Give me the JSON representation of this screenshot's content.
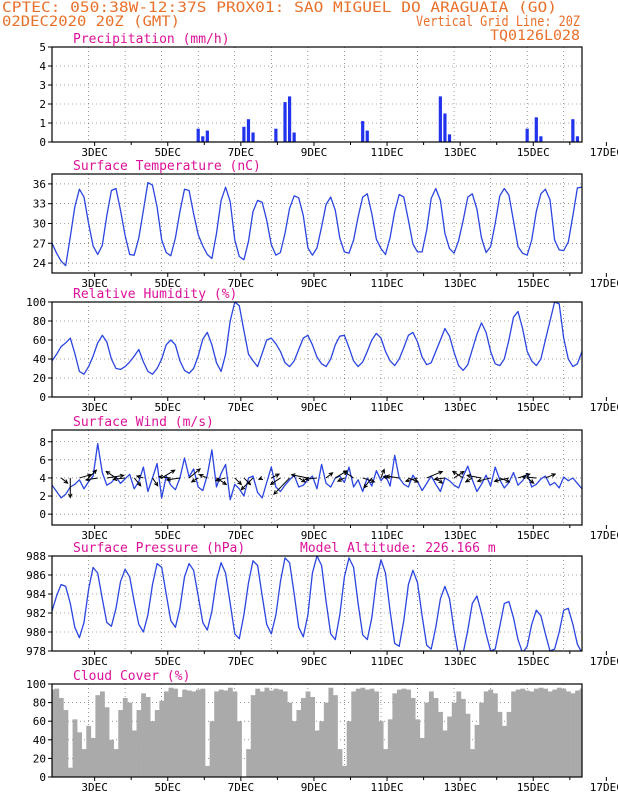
{
  "header": {
    "line1": "CPTEC:  050:38W-12:37S  PROX01: SAO MIGUEL DO ARAGUAIA (GO)",
    "line2_left": "02DEC2020 20Z (GMT)",
    "line2_right": "Vertical Grid Line: 20Z",
    "line3_right": "TQ0126L028"
  },
  "colors": {
    "header": "#e8702a",
    "panel_title": "#dd1199",
    "line": "#2b45e0",
    "bar": "#2233ee",
    "cloud": "#aaaaaa",
    "arrow": "#000000",
    "grid": "#555555"
  },
  "time_axis": {
    "start": "2020-12-02T20Z",
    "end": "2020-12-17T08Z",
    "tick_labels": [
      "3DEC",
      "5DEC",
      "7DEC",
      "9DEC",
      "11DEC",
      "13DEC",
      "15DEC",
      "17DEC"
    ],
    "vertical_grid": "20Z daily",
    "step_hours": 3
  },
  "panels": {
    "precip": {
      "title": "Precipitation (mm/h)",
      "ylim": [
        0,
        5
      ],
      "yticks": [
        "0",
        "1",
        "2",
        "3",
        "4",
        "5"
      ]
    },
    "temp": {
      "title": "Surface Temperature (nC)",
      "ylim": [
        22.5,
        37.5
      ],
      "yticks": [
        "24",
        "27",
        "30",
        "33",
        "36"
      ]
    },
    "rh": {
      "title": "Relative Humidity (%)",
      "ylim": [
        0,
        100
      ],
      "yticks": [
        "0",
        "20",
        "40",
        "60",
        "80",
        "100"
      ]
    },
    "wind": {
      "title": "Surface Wind (m/s)",
      "ylim": [
        -1.2,
        9.3
      ],
      "yticks": [
        "0",
        "2",
        "4",
        "6",
        "8"
      ]
    },
    "pres": {
      "title": "Surface Pressure (hPa)",
      "altitude": "Model Altitude: 226.166 m",
      "ylim": [
        978,
        988
      ],
      "yticks": [
        "978",
        "980",
        "982",
        "984",
        "986",
        "988"
      ]
    },
    "cloud": {
      "title": "Cloud Cover (%)",
      "ylim": [
        0,
        100
      ],
      "yticks": [
        "0",
        "20",
        "40",
        "60",
        "80",
        "100"
      ]
    }
  },
  "chart_data": [
    {
      "type": "bar",
      "title": "Precipitation (mm/h)",
      "x_start": "2020-12-02T20Z",
      "x_step_hours": 3,
      "ylim": [
        0,
        5
      ],
      "values": [
        0,
        0,
        0,
        0,
        0,
        0,
        0,
        0,
        0,
        0,
        0,
        0,
        0,
        0,
        0,
        0,
        0,
        0,
        0,
        0,
        0,
        0,
        0,
        0,
        0,
        0,
        0.02,
        0.03,
        0,
        0,
        0,
        0,
        0.7,
        0.3,
        0.6,
        0,
        0,
        0,
        0,
        0,
        0,
        0,
        0.8,
        1.2,
        0.5,
        0,
        0,
        0,
        0,
        0.7,
        0,
        2.1,
        2.4,
        0.5,
        0,
        0,
        0,
        0,
        0,
        0,
        0,
        0,
        0,
        0,
        0,
        0,
        0,
        0,
        1.1,
        0.6,
        0,
        0,
        0,
        0,
        0,
        0,
        0,
        0,
        0,
        0,
        0,
        0,
        0,
        0,
        0,
        2.4,
        1.5,
        0.4,
        0,
        0,
        0,
        0,
        0,
        0,
        0,
        0,
        0,
        0,
        0,
        0,
        0,
        0,
        0,
        0,
        0.7,
        0,
        1.3,
        0.3,
        0,
        0,
        0,
        0,
        0,
        0,
        1.2,
        0.3,
        0,
        0,
        0,
        0,
        0,
        0,
        0,
        0,
        1.0,
        0.7,
        0,
        0,
        0,
        0,
        1.5,
        1.0,
        0.4,
        0.2,
        0,
        0,
        0,
        0,
        0,
        0,
        0,
        0,
        0,
        1.3,
        0.4,
        0,
        0
      ]
    },
    {
      "type": "line",
      "title": "Surface Temperature (nC)",
      "x_start": "2020-12-02T20Z",
      "x_step_hours": 3,
      "ylim": [
        22.5,
        37.5
      ],
      "values": [
        27,
        25.5,
        24.3,
        23.6,
        28,
        32.5,
        35.2,
        34,
        30,
        26.6,
        25.3,
        26.7,
        31.2,
        35.0,
        35.3,
        32,
        28.2,
        25.3,
        25.2,
        27.8,
        32,
        36.2,
        35.8,
        32.5,
        27.5,
        25.6,
        25.1,
        27.8,
        31.8,
        35.2,
        35.0,
        31.5,
        28.3,
        26.6,
        25.3,
        24.7,
        28.5,
        33.5,
        35.5,
        33.3,
        27.5,
        25,
        24.5,
        27.3,
        31.8,
        33.5,
        33.2,
        30.5,
        26.8,
        25.2,
        25.6,
        28.5,
        32.3,
        34.2,
        33.9,
        31.2,
        26.3,
        25.2,
        26.3,
        29.5,
        32.9,
        34.0,
        32.0,
        27.8,
        25.7,
        25.5,
        27.5,
        31.0,
        34.0,
        34.5,
        31.5,
        27.6,
        26.2,
        25.3,
        27.9,
        31.8,
        34.4,
        34.0,
        30.5,
        26.9,
        25.7,
        25.7,
        29.0,
        33.8,
        35.3,
        33.5,
        28.5,
        26.2,
        25.5,
        27.4,
        30.5,
        34.0,
        34.5,
        32.2,
        27.8,
        25.6,
        26.5,
        30.0,
        34.2,
        35.3,
        34.3,
        30.4,
        26.5,
        25.5,
        25.2,
        27.5,
        31.8,
        34.5,
        35.2,
        33.6,
        27.5,
        26,
        25.9,
        27.2,
        31.2,
        35.4,
        35.5,
        31.6,
        27.3,
        25.3,
        24.9,
        26.8,
        30.5,
        34.8,
        35.0,
        30.2
      ]
    },
    {
      "type": "line",
      "title": "Relative Humidity (%)",
      "x_start": "2020-12-02T20Z",
      "x_step_hours": 3,
      "ylim": [
        0,
        100
      ],
      "values": [
        38,
        45,
        53,
        57,
        62,
        46,
        27,
        24,
        32,
        43,
        57,
        65,
        58,
        40,
        30,
        29,
        32,
        37,
        43,
        50,
        37,
        27,
        24,
        30,
        40,
        55,
        60,
        55,
        38,
        28,
        25,
        30,
        43,
        61,
        68,
        55,
        36,
        27,
        45,
        80,
        100,
        96,
        70,
        45,
        38,
        32,
        46,
        60,
        62,
        56,
        48,
        36,
        32,
        38,
        50,
        62,
        65,
        55,
        42,
        35,
        32,
        40,
        55,
        64,
        65,
        52,
        38,
        32,
        37,
        48,
        60,
        67,
        62,
        48,
        38,
        33,
        40,
        52,
        65,
        68,
        58,
        42,
        34,
        36,
        48,
        60,
        72,
        64,
        47,
        33,
        28,
        34,
        50,
        66,
        78,
        68,
        48,
        35,
        33,
        40,
        60,
        84,
        90,
        72,
        48,
        38,
        33,
        40,
        60,
        80,
        100,
        98,
        62,
        40,
        32,
        35,
        48,
        62,
        66,
        55,
        40,
        32,
        33,
        45,
        57,
        68,
        58,
        36,
        29,
        38
      ]
    },
    {
      "type": "line",
      "title": "Surface Wind (m/s)",
      "x_start": "2020-12-02T20Z",
      "x_step_hours": 3,
      "ylim": [
        -1.2,
        9.3
      ],
      "values": [
        3.2,
        2.5,
        1.8,
        2.2,
        3.0,
        3.3,
        3.8,
        2.8,
        3.6,
        4.2,
        7.8,
        4.6,
        3.2,
        3.5,
        4.1,
        3.4,
        3.9,
        4.4,
        2.8,
        3.6,
        5.2,
        2.5,
        4.0,
        5.6,
        1.8,
        4.2,
        3.2,
        2.7,
        4.0,
        6.2,
        4.1,
        5.0,
        3.0,
        2.6,
        4.3,
        7.1,
        3.0,
        4.5,
        5.5,
        1.6,
        3.3,
        2.8,
        2.0,
        4.0,
        4.2,
        2.4,
        1.8,
        3.5,
        5.2,
        3.0,
        2.5,
        3.2,
        3.8,
        4.3,
        3.0,
        3.2,
        3.8,
        4.2,
        2.8,
        5.5,
        3.4,
        3.0,
        4.0,
        4.2,
        3.5,
        5.2,
        3.0,
        3.8,
        2.5,
        4.0,
        3.1,
        4.8,
        3.7,
        4.3,
        3.1,
        6.5,
        4.0,
        3.3,
        3.0,
        4.3,
        3.6,
        2.6,
        3.4,
        4.2,
        3.3,
        2.5,
        4.0,
        3.7,
        3.2,
        2.9,
        4.2,
        5.3,
        3.8,
        2.5,
        3.3,
        4.3,
        3.1,
        5.2,
        3.8,
        2.9,
        3.5,
        4.6,
        3.2,
        3.7,
        4.5,
        3.0,
        3.3,
        3.9,
        4.2,
        3.2,
        3.5,
        2.9,
        4.1,
        3.7,
        4.0,
        3.4,
        2.8,
        4.1,
        3.5,
        3.9,
        3.6,
        3.2,
        4.0,
        3.6
      ]
    },
    {
      "type": "line",
      "title": "Surface Pressure (hPa)",
      "x_start": "2020-12-02T20Z",
      "x_step_hours": 3,
      "ylim": [
        978,
        988
      ],
      "values": [
        982.2,
        983.8,
        985.0,
        984.8,
        983.0,
        980.5,
        979.4,
        981.0,
        984.5,
        986.8,
        986.2,
        983.5,
        981.0,
        980.6,
        982.5,
        985.3,
        986.6,
        985.8,
        983.2,
        980.8,
        980.0,
        981.8,
        985.0,
        987.2,
        986.8,
        984.0,
        981.2,
        980.5,
        982.5,
        985.8,
        987.2,
        986.5,
        983.8,
        981.0,
        980.2,
        982.2,
        985.5,
        987.3,
        986.2,
        983.0,
        979.8,
        979.3,
        981.8,
        985.2,
        987.5,
        987.0,
        983.8,
        980.8,
        979.8,
        981.8,
        985.3,
        987.8,
        987.3,
        984.0,
        980.5,
        979.5,
        981.8,
        986.2,
        988.0,
        987.0,
        983.2,
        979.8,
        979.2,
        981.8,
        985.8,
        987.8,
        986.8,
        983.0,
        979.7,
        979.2,
        981.5,
        985.5,
        987.6,
        986.2,
        982.2,
        978.8,
        978.5,
        981.2,
        985.0,
        986.5,
        985.2,
        981.7,
        978.6,
        978.2,
        980.5,
        983.5,
        984.8,
        983.5,
        980.2,
        977.5,
        977.8,
        980.2,
        983.0,
        983.8,
        982.0,
        979.8,
        978.0,
        978.2,
        980.6,
        983.0,
        983.2,
        981.5,
        979.2,
        977.8,
        978.5,
        980.8,
        982.3,
        981.7,
        979.8,
        978.0,
        978.2,
        980.0,
        982.3,
        982.5,
        980.8,
        978.7,
        977.8,
        979.2,
        981.0,
        982.0,
        980.8,
        979.0,
        978.5,
        980.0,
        982.5,
        983.8,
        982.2,
        978.0
      ]
    },
    {
      "type": "area",
      "title": "Cloud Cover (%)",
      "x_start": "2020-12-02T20Z",
      "x_step_hours": 3,
      "ylim": [
        0,
        100
      ],
      "values": [
        94,
        95,
        85,
        72,
        10,
        62,
        48,
        30,
        55,
        42,
        88,
        92,
        75,
        40,
        30,
        72,
        85,
        80,
        50,
        72,
        90,
        86,
        60,
        72,
        82,
        92,
        96,
        95,
        86,
        94,
        93,
        92,
        94,
        95,
        12,
        60,
        92,
        94,
        93,
        96,
        92,
        60,
        0,
        30,
        88,
        95,
        92,
        96,
        93,
        95,
        94,
        92,
        80,
        60,
        72,
        85,
        92,
        86,
        50,
        60,
        80,
        96,
        88,
        30,
        12,
        60,
        92,
        95,
        96,
        94,
        95,
        92,
        60,
        30,
        62,
        90,
        94,
        95,
        94,
        85,
        62,
        42,
        80,
        92,
        85,
        70,
        50,
        65,
        80,
        92,
        84,
        68,
        30,
        56,
        80,
        92,
        94,
        90,
        70,
        55,
        70,
        92,
        94,
        95,
        93,
        92,
        95,
        96,
        95,
        92,
        94,
        96,
        95,
        92,
        90,
        93,
        95,
        92,
        90,
        94,
        95,
        93,
        96,
        94
      ]
    },
    {
      "type": "scatter",
      "title": "Surface Wind (m/s)",
      "subtype": "wind_vectors",
      "x_start": "2020-12-02T20Z",
      "x_step_hours": 6,
      "u": [
        -1.5,
        1.0,
        0.0,
        1.8,
        1.2,
        -1.8,
        2.6,
        -1.5,
        -1.8,
        1.0,
        -1.0,
        0.8,
        2.0,
        -1.8,
        -2.0,
        1.7,
        -1.0,
        -1.2,
        1.5,
        -1.5,
        1.0,
        1.0,
        -1.8,
        -0.5,
        1.2,
        -1.5,
        -2.4,
        1.0,
        -2.5,
        -1.8,
        1.0,
        1.8,
        -1.0,
        -1.5,
        1.8,
        -1.2,
        0.5,
        -1.0,
        -2.0,
        1.5,
        -1.8,
        2.4,
        1.0,
        -1.6,
        1.5,
        -1.6,
        -1.0,
        -2.2,
        -2.0,
        1.5,
        -2.2,
        1.8,
        1.0,
        -2.2,
        1.5,
        0,
        0,
        0,
        0
      ],
      "v": [
        -1.5,
        -0.8,
        -3.0,
        0.5,
        1.2,
        -0.3,
        0.4,
        1.0,
        -0.2,
        -1.2,
        0.3,
        -1.2,
        1.2,
        0.2,
        -0.3,
        1.4,
        -0.6,
        0.5,
        -1.0,
        -0.4,
        -1.0,
        -1.0,
        -1.8,
        -0.2,
        0.6,
        -1.0,
        -2.5,
        -0.6,
        0.5,
        -0.2,
        0.8,
        1.1,
        -0.5,
        1.0,
        -0.6,
        -1.5,
        1.3,
        0.2,
        0.3,
        -0.6,
        -0.5,
        1.0,
        -0.8,
        -0.2,
        1.0,
        1.0,
        -0.6,
        0.4,
        -0.5,
        -0.6,
        -0.5,
        0.6,
        -0.8,
        0.2,
        0.6,
        0,
        0,
        0,
        0
      ]
    }
  ]
}
